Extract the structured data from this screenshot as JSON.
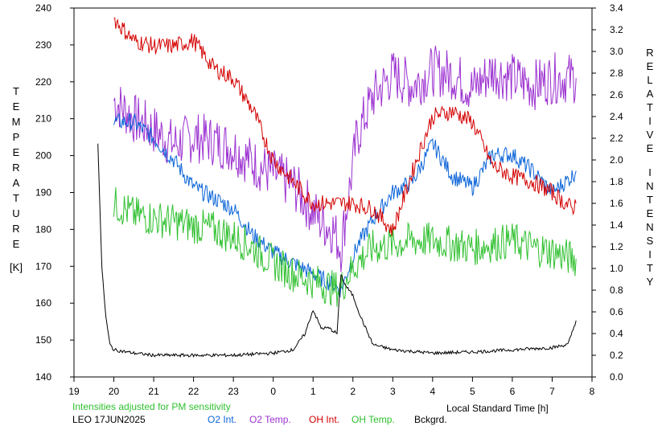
{
  "chart_data": {
    "type": "line",
    "xlabel": "Local Standard Time [h]",
    "ylabel_left": [
      "T",
      "E",
      "M",
      "P",
      "E",
      "R",
      "A",
      "T",
      "U",
      "R",
      "E",
      "",
      "[K]"
    ],
    "ylabel_right": [
      "R",
      "E",
      "L",
      "A",
      "T",
      "I",
      "V",
      "E",
      "",
      "I",
      "N",
      "T",
      "E",
      "N",
      "S",
      "I",
      "T",
      "Y"
    ],
    "x_ticks": [
      "19",
      "20",
      "21",
      "22",
      "23",
      "0",
      "1",
      "2",
      "3",
      "4",
      "5",
      "6",
      "7",
      "8"
    ],
    "y_left_ticks": [
      "240",
      "230",
      "220",
      "210",
      "200",
      "190",
      "180",
      "170",
      "160",
      "150",
      "140"
    ],
    "y_right_ticks": [
      "3.4",
      "3.2",
      "3.0",
      "2.8",
      "2.6",
      "2.4",
      "2.2",
      "2.0",
      "1.8",
      "1.6",
      "1.4",
      "1.2",
      "1.0",
      "0.8",
      "0.6",
      "0.4",
      "0.2",
      "0.0"
    ],
    "xlim": [
      19,
      32
    ],
    "ylim_left": [
      140,
      240
    ],
    "ylim_right": [
      0.0,
      3.4
    ],
    "grid": false,
    "annotation": "Intensities adjusted for PM sensitivity",
    "station": "LEO 17JUN2025",
    "legend": {
      "placement": "bottom",
      "items": [
        {
          "label": "O2 Int.",
          "color": "#0a64d8"
        },
        {
          "label": "O2 Temp.",
          "color": "#9b30d0"
        },
        {
          "label": "OH Int.",
          "color": "#d40000"
        },
        {
          "label": "OH Temp.",
          "color": "#30c030"
        },
        {
          "label": "Bckgrd.",
          "color": "#000000"
        }
      ]
    },
    "series": [
      {
        "name": "O2 Temp.",
        "axis": "left",
        "color": "#9b30d0",
        "x": [
          20.0,
          20.5,
          21.0,
          21.5,
          22.0,
          22.5,
          23.0,
          23.5,
          24.0,
          24.5,
          25.0,
          25.2,
          25.5,
          25.7,
          26.1,
          26.5,
          27.0,
          27.5,
          28.0,
          28.5,
          29.0,
          29.5,
          30.0,
          30.5,
          31.0,
          31.5,
          31.6
        ],
        "y": [
          215,
          210,
          207,
          203,
          205,
          204,
          202,
          198,
          195,
          192,
          185,
          182,
          180,
          175,
          205,
          216,
          222,
          219,
          223,
          222,
          218,
          223,
          221,
          219,
          221,
          221,
          221
        ]
      },
      {
        "name": "O2 Int.",
        "axis": "right",
        "color": "#0a64d8",
        "x": [
          20.0,
          20.5,
          21.0,
          21.5,
          22.0,
          22.5,
          23.0,
          23.5,
          24.0,
          24.5,
          25.0,
          25.5,
          25.7,
          26.1,
          26.5,
          27.0,
          27.5,
          28.0,
          28.5,
          29.0,
          29.5,
          30.0,
          30.5,
          31.0,
          31.5,
          31.6
        ],
        "y": [
          2.35,
          2.35,
          2.2,
          2.0,
          1.75,
          1.65,
          1.55,
          1.3,
          1.15,
          1.05,
          0.95,
          0.85,
          0.8,
          1.2,
          1.45,
          1.7,
          1.8,
          2.15,
          1.85,
          1.75,
          2.05,
          2.05,
          1.9,
          1.7,
          1.85,
          1.9
        ]
      },
      {
        "name": "OH Temp.",
        "axis": "left",
        "color": "#30c030",
        "x": [
          20.0,
          20.5,
          21.0,
          21.5,
          22.0,
          22.5,
          23.0,
          23.5,
          24.0,
          24.5,
          25.0,
          25.5,
          25.7,
          25.9,
          26.2,
          26.5,
          27.0,
          27.5,
          28.0,
          28.5,
          29.0,
          29.5,
          30.0,
          30.5,
          31.0,
          31.5,
          31.6
        ],
        "y": [
          187,
          184,
          183,
          182,
          181,
          180,
          178,
          175,
          171,
          168,
          166,
          164,
          164,
          168,
          172,
          175,
          176,
          177,
          177,
          176,
          175,
          176,
          177,
          175,
          174,
          172,
          172
        ]
      },
      {
        "name": "OH Int.",
        "axis": "right",
        "color": "#d40000",
        "x": [
          20.0,
          20.5,
          21.0,
          21.5,
          22.0,
          22.5,
          23.0,
          23.5,
          24.0,
          24.5,
          25.0,
          25.5,
          26.0,
          26.5,
          27.0,
          27.5,
          28.0,
          28.5,
          29.0,
          29.5,
          30.0,
          30.5,
          31.0,
          31.5,
          31.6
        ],
        "y": [
          3.3,
          3.1,
          3.05,
          3.05,
          3.1,
          2.85,
          2.75,
          2.45,
          2.0,
          1.8,
          1.6,
          1.6,
          1.6,
          1.55,
          1.35,
          1.9,
          2.4,
          2.45,
          2.35,
          1.95,
          1.85,
          1.8,
          1.7,
          1.55,
          1.6
        ]
      },
      {
        "name": "Bckgrd.",
        "axis": "right",
        "color": "#000000",
        "x": [
          19.6,
          19.7,
          19.8,
          19.9,
          20.0,
          20.5,
          21.0,
          22.0,
          23.0,
          24.0,
          24.5,
          24.8,
          25.0,
          25.2,
          25.4,
          25.6,
          25.7,
          25.8,
          26.0,
          26.2,
          26.5,
          27.0,
          28.0,
          29.0,
          30.0,
          31.0,
          31.4,
          31.6
        ],
        "y": [
          2.15,
          1.0,
          0.55,
          0.3,
          0.25,
          0.22,
          0.2,
          0.2,
          0.2,
          0.22,
          0.25,
          0.4,
          0.62,
          0.45,
          0.45,
          0.4,
          0.95,
          0.85,
          0.75,
          0.55,
          0.3,
          0.25,
          0.22,
          0.23,
          0.25,
          0.27,
          0.3,
          0.52
        ]
      }
    ]
  }
}
